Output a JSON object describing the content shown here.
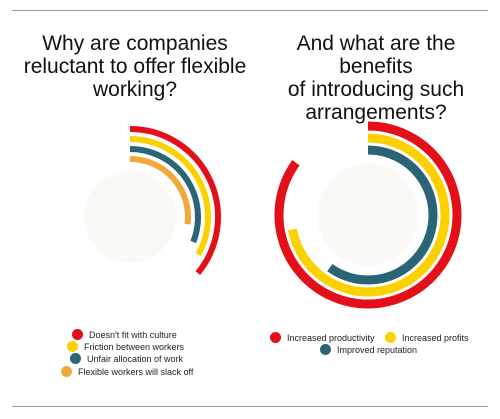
{
  "charts": [
    {
      "title": "Why are companies\nreluctant to offer flexible\nworking?"
    },
    {
      "title": "And what are the benefits\nof introducing such\narrangements?"
    }
  ],
  "colors": {
    "red": "#e3101a",
    "yellow": "#fdd000",
    "teal": "#2a6475",
    "orange": "#f2a93b"
  },
  "chart_data": [
    {
      "type": "radial-bar",
      "title": "Why are companies reluctant to offer flexible working?",
      "series": [
        {
          "name": "Doesn't fit with culture",
          "value": 0.36,
          "color": "#e3101a"
        },
        {
          "name": "Friction between workers",
          "value": 0.33,
          "color": "#fdd000"
        },
        {
          "name": "Unfair allocation of work",
          "value": 0.31,
          "color": "#2a6475"
        },
        {
          "name": "Flexible workers will slack off",
          "value": 0.27,
          "color": "#f2a93b"
        }
      ]
    },
    {
      "type": "radial-bar",
      "title": "And what are the benefits of introducing such arrangements?",
      "series": [
        {
          "name": "Increased productivity",
          "value": 0.85,
          "color": "#e3101a"
        },
        {
          "name": "Increased profits",
          "value": 0.72,
          "color": "#fdd000"
        },
        {
          "name": "Improved reputation",
          "value": 0.6,
          "color": "#2a6475"
        }
      ]
    }
  ]
}
